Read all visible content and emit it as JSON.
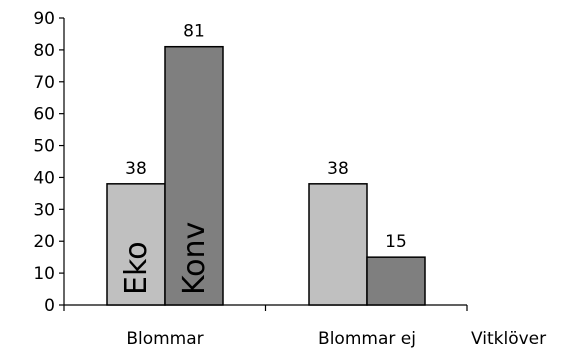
{
  "chart_data": {
    "type": "bar",
    "categories": [
      "Blommar",
      "Blommar ej"
    ],
    "series": [
      {
        "name": "Eko",
        "values": [
          38,
          38
        ],
        "color": "#c0c0c0"
      },
      {
        "name": "Konv",
        "values": [
          81,
          15
        ],
        "color": "#7f7f7f"
      }
    ],
    "xlabel": "Vitklöver",
    "ylabel": "",
    "ylim": [
      0,
      90
    ],
    "yticks": [
      0,
      10,
      20,
      30,
      40,
      50,
      60,
      70,
      80,
      90
    ],
    "grid": false,
    "legend": "series names written vertically inside first-category bars",
    "data_labels": true
  }
}
